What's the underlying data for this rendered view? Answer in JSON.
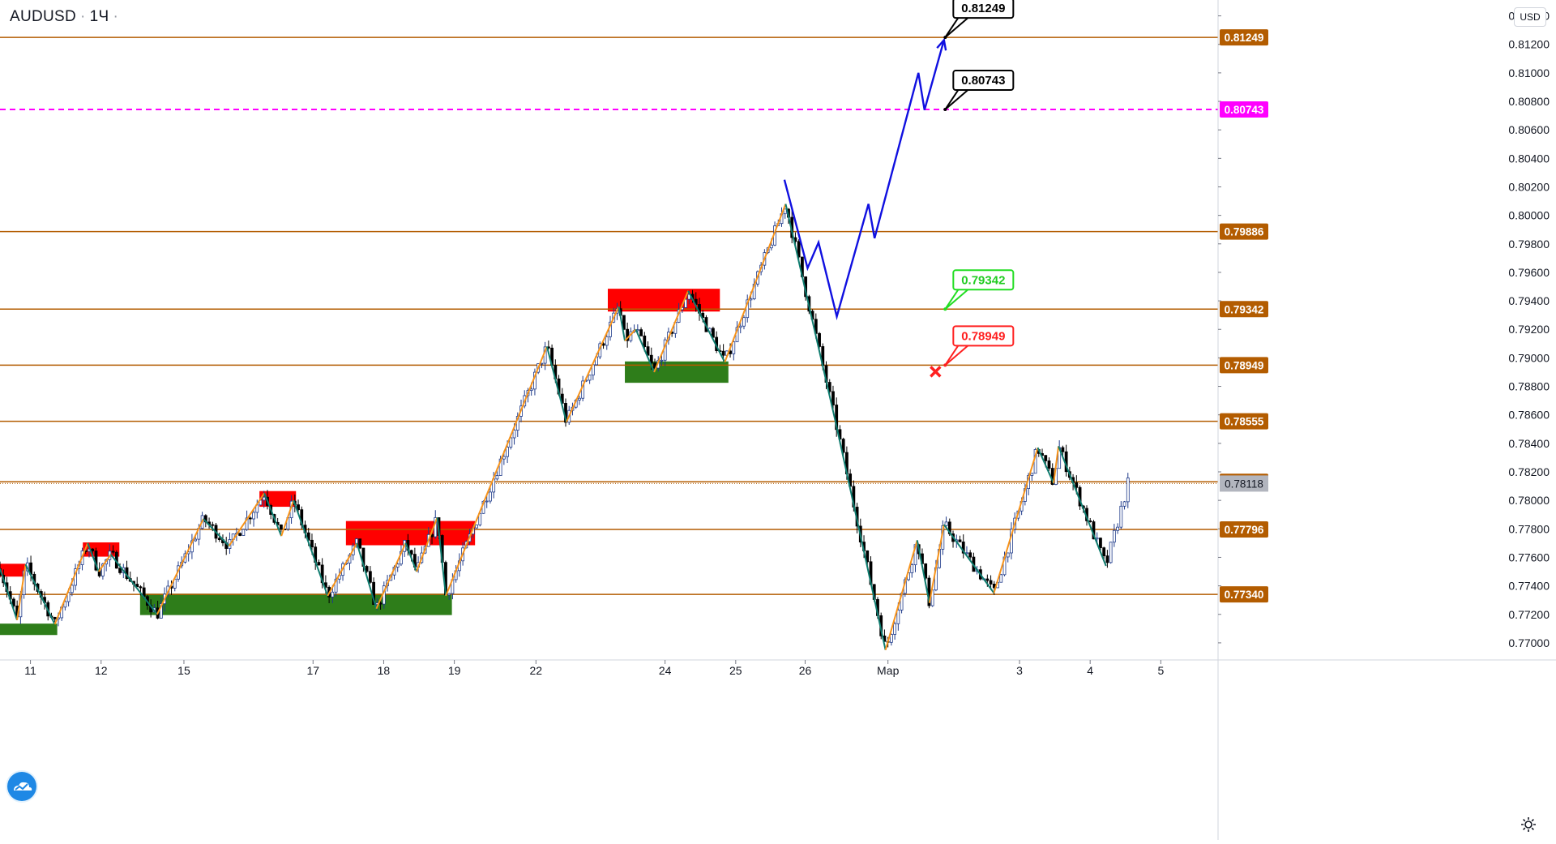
{
  "header": {
    "symbol": "AUDUSD",
    "interval": "1Ч",
    "currency": "USD"
  },
  "colors": {
    "level": "#b35c00",
    "target_dashed": "#ff00ff",
    "current_price_line": "#b35c00",
    "up_candle": "#1e3a8a",
    "down_candle": "#000000",
    "wave_up": "#f7931a",
    "wave_down": "#0f7c6f",
    "forecast": "#1010e0",
    "supply_zone": "#ff0000",
    "demand_zone": "#2e7d1a"
  },
  "chart_data": {
    "type": "candlestick",
    "instrument": "AUDUSD",
    "timeframe": "1H",
    "y_axis": {
      "ticks": [
        "0.81400",
        "0.81200",
        "0.81000",
        "0.80800",
        "0.80600",
        "0.80400",
        "0.80200",
        "0.80000",
        "0.79800",
        "0.79600",
        "0.79400",
        "0.79200",
        "0.79000",
        "0.78800",
        "0.78600",
        "0.78400",
        "0.78200",
        "0.78000",
        "0.77800",
        "0.77600",
        "0.77400",
        "0.77200",
        "0.77000"
      ],
      "range": [
        0.7688,
        0.815
      ]
    },
    "x_axis": {
      "ticks": [
        {
          "label": "11",
          "pos": 0.025
        },
        {
          "label": "12",
          "pos": 0.083
        },
        {
          "label": "15",
          "pos": 0.151
        },
        {
          "label": "17",
          "pos": 0.257
        },
        {
          "label": "18",
          "pos": 0.315
        },
        {
          "label": "19",
          "pos": 0.373
        },
        {
          "label": "22",
          "pos": 0.44
        },
        {
          "label": "24",
          "pos": 0.546
        },
        {
          "label": "25",
          "pos": 0.604
        },
        {
          "label": "26",
          "pos": 0.661
        },
        {
          "label": "Мар",
          "pos": 0.729
        },
        {
          "label": "3",
          "pos": 0.837
        },
        {
          "label": "4",
          "pos": 0.895
        },
        {
          "label": "5",
          "pos": 0.953
        }
      ]
    },
    "levels": [
      {
        "price": 0.81249,
        "label": "0.81249",
        "style": "solid"
      },
      {
        "price": 0.80743,
        "label": "0.80743",
        "style": "dashed"
      },
      {
        "price": 0.79886,
        "label": "0.79886",
        "style": "solid"
      },
      {
        "price": 0.79342,
        "label": "0.79342",
        "style": "solid"
      },
      {
        "price": 0.78949,
        "label": "0.78949",
        "style": "solid"
      },
      {
        "price": 0.78555,
        "label": "0.78555",
        "style": "solid"
      },
      {
        "price": 0.7813,
        "label": "0.78130",
        "style": "solid"
      },
      {
        "price": 0.77796,
        "label": "0.77796",
        "style": "solid"
      },
      {
        "price": 0.7734,
        "label": "0.77340",
        "style": "solid"
      }
    ],
    "current_price": {
      "price": 0.78118,
      "label": "0.78118"
    },
    "callouts": [
      {
        "label": "0.81249",
        "kind": "target",
        "x": 0.776,
        "price": 0.81249
      },
      {
        "label": "0.80743",
        "kind": "target",
        "x": 0.776,
        "price": 0.80743
      },
      {
        "label": "0.79342",
        "kind": "entry",
        "x": 0.776,
        "price": 0.79342
      },
      {
        "label": "0.78949",
        "kind": "stop",
        "x": 0.776,
        "price": 0.78949
      }
    ],
    "forecast_path": [
      {
        "x": 0.644,
        "price": 0.8025
      },
      {
        "x": 0.663,
        "price": 0.7963
      },
      {
        "x": 0.672,
        "price": 0.7981
      },
      {
        "x": 0.687,
        "price": 0.7929
      },
      {
        "x": 0.713,
        "price": 0.8008
      },
      {
        "x": 0.718,
        "price": 0.7984
      },
      {
        "x": 0.754,
        "price": 0.81
      },
      {
        "x": 0.759,
        "price": 0.8074
      },
      {
        "x": 0.775,
        "price": 0.8123
      }
    ],
    "zones": [
      {
        "kind": "supply",
        "x0": 0.0,
        "x1": 0.021,
        "p0": 0.77555,
        "p1": 0.77465
      },
      {
        "kind": "supply",
        "x0": 0.068,
        "x1": 0.098,
        "p0": 0.77705,
        "p1": 0.77605
      },
      {
        "kind": "supply",
        "x0": 0.213,
        "x1": 0.243,
        "p0": 0.78065,
        "p1": 0.77955
      },
      {
        "kind": "supply",
        "x0": 0.284,
        "x1": 0.39,
        "p0": 0.77855,
        "p1": 0.77685
      },
      {
        "kind": "supply",
        "x0": 0.499,
        "x1": 0.591,
        "p0": 0.79485,
        "p1": 0.79325
      },
      {
        "kind": "demand",
        "x0": 0.0,
        "x1": 0.047,
        "p0": 0.77135,
        "p1": 0.77055
      },
      {
        "kind": "demand",
        "x0": 0.115,
        "x1": 0.371,
        "p0": 0.77345,
        "p1": 0.77195
      },
      {
        "kind": "demand",
        "x0": 0.513,
        "x1": 0.598,
        "p0": 0.78975,
        "p1": 0.78825
      }
    ],
    "waves": [
      {
        "dir": "down",
        "pts": [
          {
            "x": 0.0,
            "p": 0.7752
          },
          {
            "x": 0.014,
            "p": 0.7716
          }
        ]
      },
      {
        "dir": "up",
        "pts": [
          {
            "x": 0.014,
            "p": 0.7716
          },
          {
            "x": 0.021,
            "p": 0.7755
          }
        ]
      },
      {
        "dir": "down",
        "pts": [
          {
            "x": 0.021,
            "p": 0.7755
          },
          {
            "x": 0.045,
            "p": 0.7713
          }
        ]
      },
      {
        "dir": "up",
        "pts": [
          {
            "x": 0.045,
            "p": 0.7713
          },
          {
            "x": 0.072,
            "p": 0.777
          }
        ]
      },
      {
        "dir": "down",
        "pts": [
          {
            "x": 0.072,
            "p": 0.777
          },
          {
            "x": 0.081,
            "p": 0.775
          }
        ]
      },
      {
        "dir": "up",
        "pts": [
          {
            "x": 0.081,
            "p": 0.775
          },
          {
            "x": 0.091,
            "p": 0.7762
          }
        ]
      },
      {
        "dir": "down",
        "pts": [
          {
            "x": 0.091,
            "p": 0.7762
          },
          {
            "x": 0.129,
            "p": 0.772
          }
        ]
      },
      {
        "dir": "up",
        "pts": [
          {
            "x": 0.129,
            "p": 0.772
          },
          {
            "x": 0.167,
            "p": 0.7787
          }
        ]
      },
      {
        "dir": "down",
        "pts": [
          {
            "x": 0.167,
            "p": 0.7787
          },
          {
            "x": 0.188,
            "p": 0.7768
          }
        ]
      },
      {
        "dir": "up",
        "pts": [
          {
            "x": 0.188,
            "p": 0.7768
          },
          {
            "x": 0.217,
            "p": 0.7805
          }
        ]
      },
      {
        "dir": "down",
        "pts": [
          {
            "x": 0.217,
            "p": 0.7805
          },
          {
            "x": 0.231,
            "p": 0.7775
          }
        ]
      },
      {
        "dir": "up",
        "pts": [
          {
            "x": 0.231,
            "p": 0.7775
          },
          {
            "x": 0.241,
            "p": 0.78
          }
        ]
      },
      {
        "dir": "down",
        "pts": [
          {
            "x": 0.241,
            "p": 0.78
          },
          {
            "x": 0.269,
            "p": 0.7733
          }
        ]
      },
      {
        "dir": "up",
        "pts": [
          {
            "x": 0.269,
            "p": 0.7733
          },
          {
            "x": 0.293,
            "p": 0.777
          }
        ]
      },
      {
        "dir": "down",
        "pts": [
          {
            "x": 0.293,
            "p": 0.777
          },
          {
            "x": 0.309,
            "p": 0.7724
          }
        ]
      },
      {
        "dir": "up",
        "pts": [
          {
            "x": 0.309,
            "p": 0.7724
          },
          {
            "x": 0.333,
            "p": 0.777
          }
        ]
      },
      {
        "dir": "down",
        "pts": [
          {
            "x": 0.333,
            "p": 0.777
          },
          {
            "x": 0.342,
            "p": 0.775
          }
        ]
      },
      {
        "dir": "up",
        "pts": [
          {
            "x": 0.342,
            "p": 0.775
          },
          {
            "x": 0.359,
            "p": 0.7788
          }
        ]
      },
      {
        "dir": "down",
        "pts": [
          {
            "x": 0.359,
            "p": 0.7788
          },
          {
            "x": 0.366,
            "p": 0.7733
          }
        ]
      },
      {
        "dir": "up",
        "pts": [
          {
            "x": 0.366,
            "p": 0.7733
          },
          {
            "x": 0.449,
            "p": 0.7908
          }
        ]
      },
      {
        "dir": "down",
        "pts": [
          {
            "x": 0.449,
            "p": 0.7908
          },
          {
            "x": 0.465,
            "p": 0.7855
          }
        ]
      },
      {
        "dir": "up",
        "pts": [
          {
            "x": 0.465,
            "p": 0.7855
          },
          {
            "x": 0.508,
            "p": 0.7936
          }
        ]
      },
      {
        "dir": "down",
        "pts": [
          {
            "x": 0.508,
            "p": 0.7936
          },
          {
            "x": 0.513,
            "p": 0.7912
          }
        ]
      },
      {
        "dir": "up",
        "pts": [
          {
            "x": 0.513,
            "p": 0.7912
          },
          {
            "x": 0.522,
            "p": 0.792
          }
        ]
      },
      {
        "dir": "down",
        "pts": [
          {
            "x": 0.522,
            "p": 0.792
          },
          {
            "x": 0.537,
            "p": 0.789
          }
        ]
      },
      {
        "dir": "up",
        "pts": [
          {
            "x": 0.537,
            "p": 0.789
          },
          {
            "x": 0.565,
            "p": 0.7947
          }
        ]
      },
      {
        "dir": "down",
        "pts": [
          {
            "x": 0.565,
            "p": 0.7947
          },
          {
            "x": 0.595,
            "p": 0.7897
          }
        ]
      },
      {
        "dir": "up",
        "pts": [
          {
            "x": 0.595,
            "p": 0.7897
          },
          {
            "x": 0.645,
            "p": 0.8008
          }
        ]
      },
      {
        "dir": "down",
        "pts": [
          {
            "x": 0.645,
            "p": 0.8008
          },
          {
            "x": 0.686,
            "p": 0.7855
          }
        ]
      },
      {
        "dir": "down",
        "pts": [
          {
            "x": 0.686,
            "p": 0.7855
          },
          {
            "x": 0.727,
            "p": 0.7695
          }
        ]
      },
      {
        "dir": "up",
        "pts": [
          {
            "x": 0.727,
            "p": 0.7695
          },
          {
            "x": 0.753,
            "p": 0.7772
          }
        ]
      },
      {
        "dir": "down",
        "pts": [
          {
            "x": 0.753,
            "p": 0.7772
          },
          {
            "x": 0.763,
            "p": 0.7728
          }
        ]
      },
      {
        "dir": "up",
        "pts": [
          {
            "x": 0.763,
            "p": 0.7728
          },
          {
            "x": 0.775,
            "p": 0.7783
          }
        ]
      },
      {
        "dir": "down",
        "pts": [
          {
            "x": 0.775,
            "p": 0.7783
          },
          {
            "x": 0.816,
            "p": 0.7735
          }
        ]
      },
      {
        "dir": "up",
        "pts": [
          {
            "x": 0.816,
            "p": 0.7735
          },
          {
            "x": 0.852,
            "p": 0.7837
          }
        ]
      },
      {
        "dir": "down",
        "pts": [
          {
            "x": 0.852,
            "p": 0.7837
          },
          {
            "x": 0.865,
            "p": 0.7812
          }
        ]
      },
      {
        "dir": "up",
        "pts": [
          {
            "x": 0.865,
            "p": 0.7812
          },
          {
            "x": 0.869,
            "p": 0.7838
          }
        ]
      },
      {
        "dir": "down",
        "pts": [
          {
            "x": 0.869,
            "p": 0.7838
          },
          {
            "x": 0.908,
            "p": 0.7754
          }
        ]
      }
    ]
  }
}
